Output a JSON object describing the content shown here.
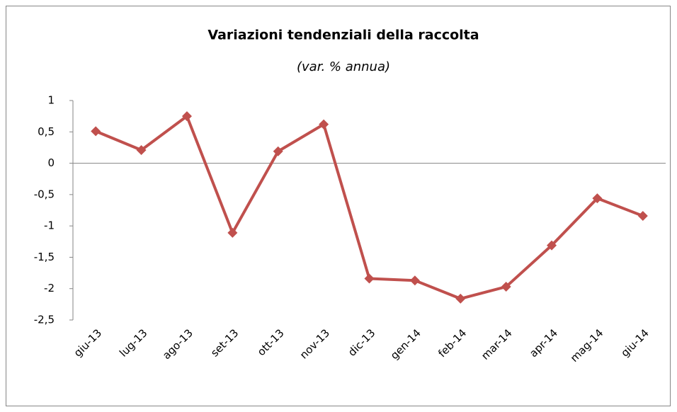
{
  "chart_data": {
    "type": "line",
    "title": "Variazioni tendenziali della raccolta",
    "subtitle": "(var. % annua)",
    "categories": [
      "giu-13",
      "lug-13",
      "ago-13",
      "set-13",
      "ott-13",
      "nov-13",
      "dic-13",
      "gen-14",
      "feb-14",
      "mar-14",
      "apr-14",
      "mag-14",
      "giu-14"
    ],
    "series": [
      {
        "name": "raccolta",
        "color": "#c0504d",
        "values": [
          0.51,
          0.21,
          0.75,
          -1.11,
          0.19,
          0.62,
          -1.84,
          -1.87,
          -2.16,
          -1.97,
          -1.31,
          -0.56,
          -0.84
        ]
      }
    ],
    "ylim": [
      -2.5,
      1
    ],
    "yticks": [
      {
        "value": -2.5,
        "label": "-2,5"
      },
      -2,
      {
        "value": -1.5,
        "label": "-1,5"
      },
      -1,
      {
        "value": -0.5,
        "label": "-0,5"
      },
      0,
      {
        "value": 0.5,
        "label": "0,5"
      },
      1
    ],
    "grid": false
  }
}
